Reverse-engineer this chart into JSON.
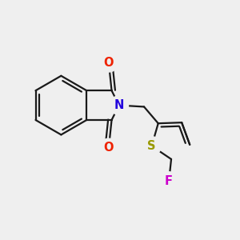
{
  "background_color": "#efefef",
  "bond_color": "#1a1a1a",
  "bond_width": 1.6,
  "atom_labels": {
    "N": {
      "text": "N",
      "color": "#2200dd",
      "fontsize": 10.5,
      "fontweight": "bold"
    },
    "O1": {
      "text": "O",
      "color": "#ee2200",
      "fontsize": 10.5,
      "fontweight": "bold"
    },
    "O2": {
      "text": "O",
      "color": "#ee2200",
      "fontsize": 10.5,
      "fontweight": "bold"
    },
    "S": {
      "text": "S",
      "color": "#999900",
      "fontsize": 10.5,
      "fontweight": "bold"
    },
    "F": {
      "text": "F",
      "color": "#cc00cc",
      "fontsize": 10.5,
      "fontweight": "bold"
    }
  },
  "figsize": [
    3.0,
    3.0
  ],
  "dpi": 100
}
